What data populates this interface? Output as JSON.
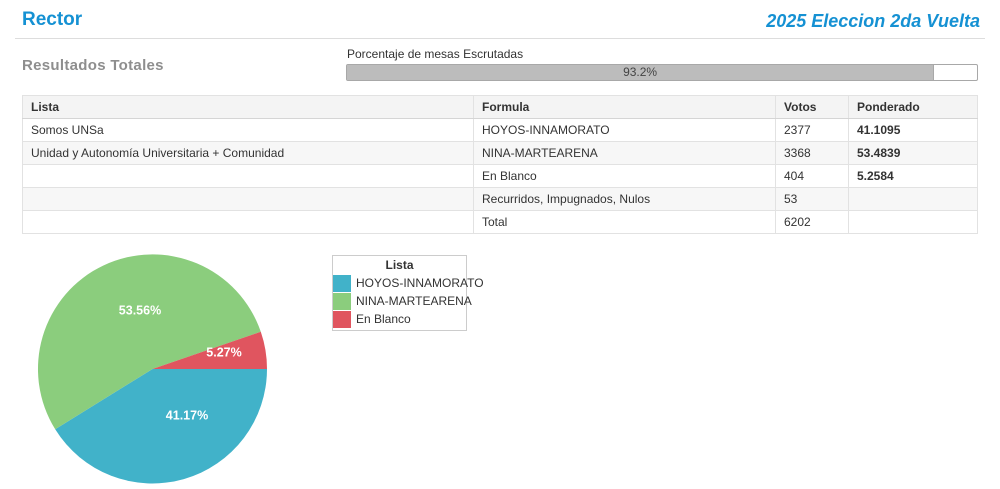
{
  "header": {
    "title": "Rector",
    "subtitle": "2025 Eleccion 2da Vuelta"
  },
  "section": {
    "title": "Resultados Totales"
  },
  "progress": {
    "label": "Porcentaje de mesas Escrutadas",
    "percent": 93.2,
    "value_label": "93.2%"
  },
  "table": {
    "columns": [
      "Lista",
      "Formula",
      "Votos",
      "Ponderado"
    ],
    "rows": [
      {
        "lista": "Somos UNSa",
        "formula": "HOYOS-INNAMORATO",
        "votos": "2377",
        "ponderado": "41.1095"
      },
      {
        "lista": "Unidad y Autonomía Universitaria + Comunidad",
        "formula": "NINA-MARTEARENA",
        "votos": "3368",
        "ponderado": "53.4839"
      },
      {
        "lista": "",
        "formula": "En Blanco",
        "votos": "404",
        "ponderado": "5.2584"
      },
      {
        "lista": "",
        "formula": "Recurridos, Impugnados, Nulos",
        "votos": "53",
        "ponderado": ""
      },
      {
        "lista": "",
        "formula": "Total",
        "votos": "6202",
        "ponderado": ""
      }
    ]
  },
  "chart_data": {
    "type": "pie",
    "legend_title": "Lista",
    "categories": [
      "HOYOS-INNAMORATO",
      "NINA-MARTEARENA",
      "En Blanco"
    ],
    "values": [
      41.17,
      53.56,
      5.27
    ],
    "labels": [
      "41.17%",
      "53.56%",
      "5.27%"
    ],
    "colors": [
      "#41b2c9",
      "#8bcd7d",
      "#e0555f"
    ],
    "legend_position": "right",
    "start_angle_deg": 0,
    "direction": "clockwise"
  },
  "colors": {
    "accent": "#1591d3",
    "section_title": "#8e8e8e",
    "progress_fill": "#bcbcbc"
  }
}
